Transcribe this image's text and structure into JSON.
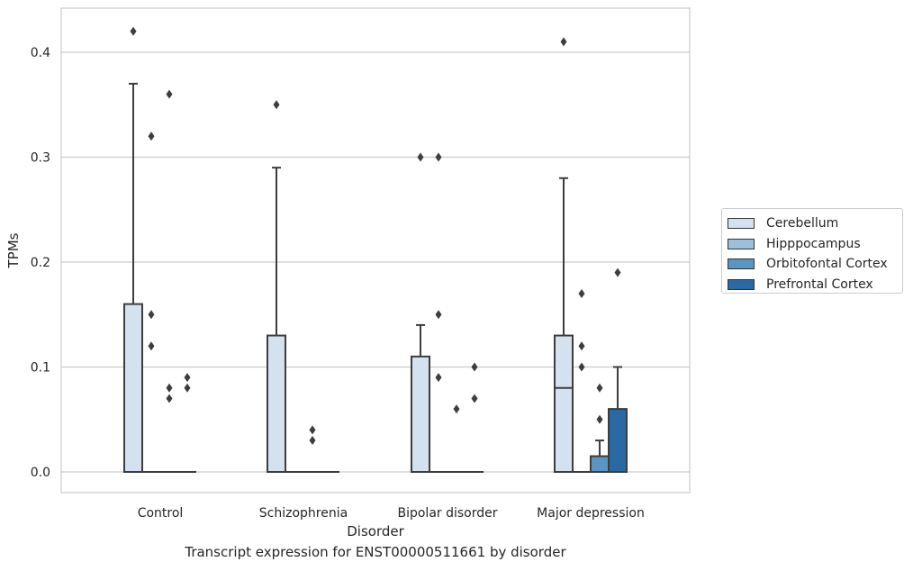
{
  "chart_data": {
    "type": "box",
    "caption": "Transcript expression for ENST00000511661 by disorder",
    "xlabel": "Disorder",
    "ylabel": "TPMs",
    "ylim": [
      -0.02,
      0.44
    ],
    "yticks": [
      "0.0",
      "0.1",
      "0.2",
      "0.3",
      "0.4"
    ],
    "grid": "horizontal",
    "legend_position": "right",
    "categories": [
      "Control",
      "Schizophrenia",
      "Bipolar disorder",
      "Major depression"
    ],
    "series": [
      {
        "name": "Cerebellum",
        "color": "#d4e2f0",
        "boxes": [
          {
            "q1": 0,
            "median": 0,
            "q3": 0.16,
            "whisker_low": 0,
            "whisker_high": 0.37,
            "outliers": [
              0.42
            ]
          },
          {
            "q1": 0,
            "median": 0,
            "q3": 0.13,
            "whisker_low": 0,
            "whisker_high": 0.29,
            "outliers": [
              0.35
            ]
          },
          {
            "q1": 0,
            "median": 0,
            "q3": 0.11,
            "whisker_low": 0,
            "whisker_high": 0.14,
            "outliers": [
              0.3
            ]
          },
          {
            "q1": 0,
            "median": 0.08,
            "q3": 0.13,
            "whisker_low": 0,
            "whisker_high": 0.28,
            "outliers": [
              0.41
            ]
          }
        ]
      },
      {
        "name": "Hipppocampus",
        "color": "#9cc0dc",
        "boxes": [
          {
            "q1": 0,
            "median": 0,
            "q3": 0,
            "whisker_low": 0,
            "whisker_high": 0,
            "outliers": [
              0.32,
              0.15,
              0.12
            ]
          },
          {
            "q1": 0,
            "median": 0,
            "q3": 0,
            "whisker_low": 0,
            "whisker_high": 0,
            "outliers": []
          },
          {
            "q1": 0,
            "median": 0,
            "q3": 0,
            "whisker_low": 0,
            "whisker_high": 0,
            "outliers": [
              0.3,
              0.15,
              0.09
            ]
          },
          {
            "q1": 0,
            "median": 0,
            "q3": 0,
            "whisker_low": 0,
            "whisker_high": 0,
            "outliers": [
              0.17,
              0.12,
              0.1
            ]
          }
        ]
      },
      {
        "name": "Orbitofontal Cortex",
        "color": "#5a96c4",
        "boxes": [
          {
            "q1": 0,
            "median": 0,
            "q3": 0,
            "whisker_low": 0,
            "whisker_high": 0,
            "outliers": [
              0.36,
              0.08,
              0.07
            ]
          },
          {
            "q1": 0,
            "median": 0,
            "q3": 0,
            "whisker_low": 0,
            "whisker_high": 0,
            "outliers": [
              0.04,
              0.03
            ]
          },
          {
            "q1": 0,
            "median": 0,
            "q3": 0,
            "whisker_low": 0,
            "whisker_high": 0,
            "outliers": [
              0.06
            ]
          },
          {
            "q1": 0,
            "median": 0,
            "q3": 0.015,
            "whisker_low": 0,
            "whisker_high": 0.03,
            "outliers": [
              0.08,
              0.05
            ]
          }
        ]
      },
      {
        "name": "Prefrontal Cortex",
        "color": "#2b69a4",
        "boxes": [
          {
            "q1": 0,
            "median": 0,
            "q3": 0,
            "whisker_low": 0,
            "whisker_high": 0,
            "outliers": [
              0.09,
              0.08
            ]
          },
          {
            "q1": 0,
            "median": 0,
            "q3": 0,
            "whisker_low": 0,
            "whisker_high": 0,
            "outliers": []
          },
          {
            "q1": 0,
            "median": 0,
            "q3": 0,
            "whisker_low": 0,
            "whisker_high": 0,
            "outliers": [
              0.1,
              0.07
            ]
          },
          {
            "q1": 0,
            "median": 0,
            "q3": 0.06,
            "whisker_low": 0,
            "whisker_high": 0.1,
            "outliers": [
              0.19
            ]
          }
        ]
      }
    ]
  }
}
